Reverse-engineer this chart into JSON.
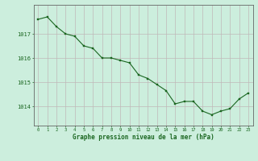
{
  "hours": [
    0,
    1,
    2,
    3,
    4,
    5,
    6,
    7,
    8,
    9,
    10,
    11,
    12,
    13,
    14,
    15,
    16,
    17,
    18,
    19,
    20,
    21,
    22,
    23
  ],
  "pressure": [
    1017.6,
    1017.7,
    1017.3,
    1017.0,
    1016.9,
    1016.5,
    1016.4,
    1016.0,
    1016.0,
    1015.9,
    1015.8,
    1015.3,
    1015.15,
    1014.9,
    1014.65,
    1014.1,
    1014.2,
    1014.2,
    1013.8,
    1013.65,
    1013.8,
    1013.9,
    1014.3,
    1014.55
  ],
  "line_color": "#1a6620",
  "marker_color": "#1a6620",
  "bg_color": "#cceedd",
  "grid_color_v": "#c0b8b8",
  "grid_color_h": "#c0b8b8",
  "border_color": "#666666",
  "xlabel": "Graphe pression niveau de la mer (hPa)",
  "xlabel_color": "#1a6620",
  "tick_label_color": "#1a6620",
  "yticks": [
    1014,
    1015,
    1016,
    1017
  ],
  "ylim": [
    1013.2,
    1018.2
  ],
  "xlim": [
    -0.5,
    23.5
  ]
}
